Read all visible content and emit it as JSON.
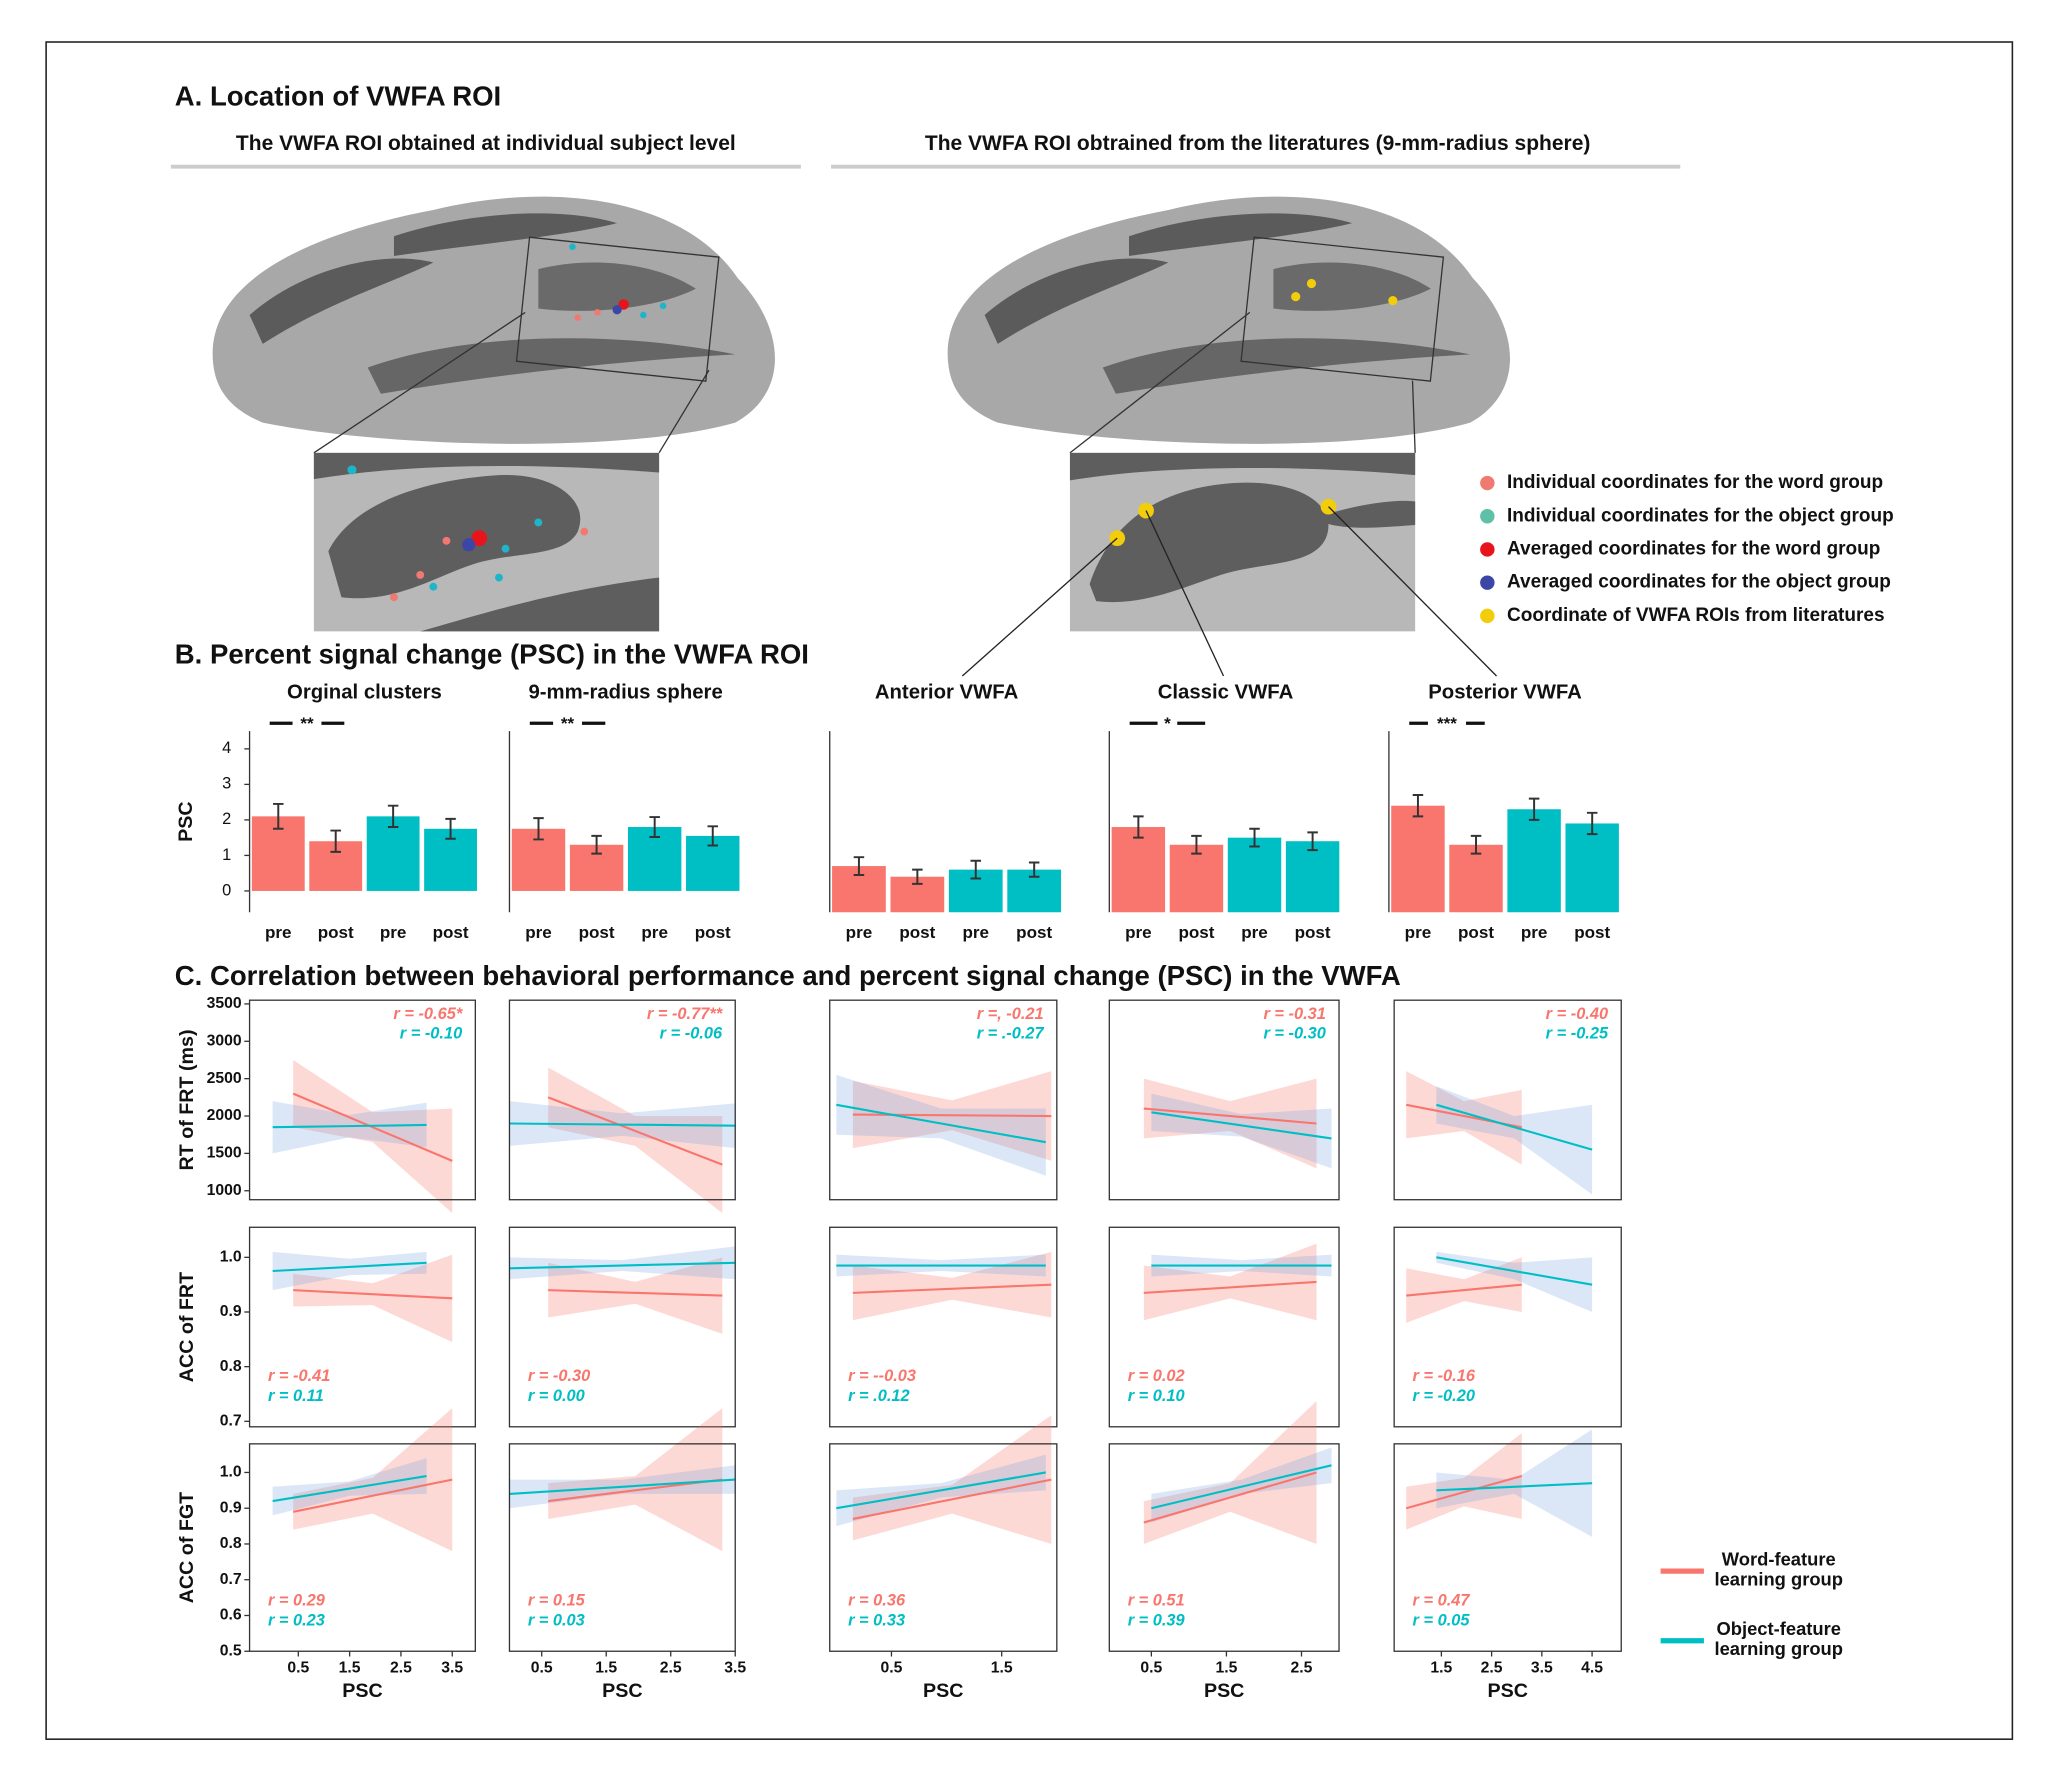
{
  "panel_a": {
    "title": "A. Location of VWFA ROI",
    "subtitles": [
      "The VWFA ROI obtained at individual subject level",
      "The VWFA ROI obtrained from the literatures (9-mm-radius sphere)"
    ],
    "legend": [
      {
        "label": "Individual coordinates for the word group",
        "color": "#f07a72"
      },
      {
        "label": "Individual coordinates for the object group",
        "color": "#5fc0a8"
      },
      {
        "label": "Averaged coordinates for the word group",
        "color": "#e8141b"
      },
      {
        "label": "Averaged coordinates for the object group",
        "color": "#3b46a6"
      },
      {
        "label": "Coordinate of VWFA ROIs from literatures",
        "color": "#f2cd0c"
      }
    ]
  },
  "panel_b_title": "B. Percent signal change (PSC) in the VWFA ROI",
  "panel_c_title": "C. Correlation between behavioral performance and percent signal change (PSC) in the VWFA",
  "legend": [
    {
      "name": "Word-feature learning group",
      "color": "#f8766d"
    },
    {
      "name": "Object-feature learning group",
      "color": "#00bfc4"
    }
  ],
  "chart_data": [
    {
      "type": "bar",
      "title": "Orginal clusters",
      "ylabel": "PSC",
      "categories": [
        "pre",
        "post",
        "pre",
        "post"
      ],
      "values": [
        2.1,
        1.4,
        2.1,
        1.75
      ],
      "errors": [
        0.35,
        0.3,
        0.3,
        0.28
      ],
      "colors": [
        "#f8766d",
        "#f8766d",
        "#00bfc4",
        "#00bfc4"
      ],
      "ylim": [
        -0.6,
        4.5
      ],
      "yticks": [
        0,
        1,
        2,
        3,
        4
      ],
      "annotation": "**"
    },
    {
      "type": "bar",
      "title": "9-mm-radius sphere",
      "categories": [
        "pre",
        "post",
        "pre",
        "post"
      ],
      "values": [
        1.75,
        1.3,
        1.8,
        1.55
      ],
      "errors": [
        0.3,
        0.25,
        0.28,
        0.27
      ],
      "colors": [
        "#f8766d",
        "#f8766d",
        "#00bfc4",
        "#00bfc4"
      ],
      "ylim": [
        -0.6,
        4.5
      ],
      "annotation": "**"
    },
    {
      "type": "bar",
      "title": "Anterior VWFA",
      "categories": [
        "pre",
        "post",
        "pre",
        "post"
      ],
      "values": [
        1.3,
        1.0,
        1.2,
        1.2
      ],
      "errors": [
        0.25,
        0.2,
        0.25,
        0.2
      ],
      "colors": [
        "#f8766d",
        "#f8766d",
        "#00bfc4",
        "#00bfc4"
      ],
      "ylim": [
        0,
        5.1
      ]
    },
    {
      "type": "bar",
      "title": "Classic VWFA",
      "categories": [
        "pre",
        "post",
        "pre",
        "post"
      ],
      "values": [
        2.4,
        1.9,
        2.1,
        2.0
      ],
      "errors": [
        0.3,
        0.25,
        0.25,
        0.25
      ],
      "colors": [
        "#f8766d",
        "#f8766d",
        "#00bfc4",
        "#00bfc4"
      ],
      "ylim": [
        0,
        5.1
      ],
      "annotation": "*"
    },
    {
      "type": "bar",
      "title": "Posterior VWFA",
      "categories": [
        "pre",
        "post",
        "pre",
        "post"
      ],
      "values": [
        3.0,
        1.9,
        2.9,
        2.5
      ],
      "errors": [
        0.3,
        0.25,
        0.3,
        0.3
      ],
      "colors": [
        "#f8766d",
        "#f8766d",
        "#00bfc4",
        "#00bfc4"
      ],
      "ylim": [
        0,
        5.1
      ],
      "annotation": "***"
    },
    {
      "type": "regression",
      "ylabel": "RT of FRT (ms)",
      "ylim": [
        880,
        3550
      ],
      "yticks": [
        1000,
        1500,
        2000,
        2500,
        3000,
        3500
      ],
      "xlim": [
        -0.45,
        3.95
      ],
      "series": [
        {
          "color": "#f8766d",
          "x": [
            0.4,
            3.5
          ],
          "values": [
            2300,
            1400
          ],
          "ci": [
            450,
            200,
            700
          ],
          "r_label": "r = -0.65*"
        },
        {
          "color": "#00bfc4",
          "x": [
            0,
            3.0
          ],
          "values": [
            1850,
            1880
          ],
          "ci": [
            350,
            150,
            300
          ],
          "r_label": "r = -0.10"
        }
      ]
    },
    {
      "type": "regression",
      "ylim": [
        880,
        3550
      ],
      "xlim": [
        0,
        3.5
      ],
      "series": [
        {
          "color": "#f8766d",
          "x": [
            0.6,
            3.3
          ],
          "values": [
            2250,
            1350
          ],
          "ci": [
            400,
            200,
            650
          ],
          "r_label": "r = -0.77**"
        },
        {
          "color": "#00bfc4",
          "x": [
            0,
            3.5
          ],
          "values": [
            1900,
            1870
          ],
          "ci": [
            300,
            150,
            300
          ],
          "r_label": "r = -0.06"
        }
      ]
    },
    {
      "type": "regression",
      "ylim": [
        880,
        3550
      ],
      "xlim": [
        -0.06,
        2.0
      ],
      "series": [
        {
          "color": "#f8766d",
          "x": [
            0.15,
            1.95
          ],
          "values": [
            2020,
            2000
          ],
          "ci": [
            450,
            200,
            600
          ],
          "r_label": "r =, -0.21"
        },
        {
          "color": "#00bfc4",
          "x": [
            0,
            1.9
          ],
          "values": [
            2150,
            1650
          ],
          "ci": [
            400,
            200,
            450
          ],
          "r_label": "r = .-0.27"
        }
      ]
    },
    {
      "type": "regression",
      "ylim": [
        880,
        3550
      ],
      "xlim": [
        -0.06,
        3.0
      ],
      "series": [
        {
          "color": "#f8766d",
          "x": [
            0.4,
            2.7
          ],
          "values": [
            2100,
            1900
          ],
          "ci": [
            400,
            200,
            600
          ],
          "r_label": "r = -0.31"
        },
        {
          "color": "#00bfc4",
          "x": [
            0.5,
            2.9
          ],
          "values": [
            2050,
            1700
          ],
          "ci": [
            250,
            150,
            400
          ],
          "r_label": "r = -0.30"
        }
      ]
    },
    {
      "type": "regression",
      "ylim": [
        880,
        3550
      ],
      "xlim": [
        0.56,
        5.08
      ],
      "series": [
        {
          "color": "#f8766d",
          "x": [
            0.8,
            3.1
          ],
          "values": [
            2150,
            1850
          ],
          "ci": [
            450,
            200,
            500
          ],
          "r_label": "r = -0.40"
        },
        {
          "color": "#00bfc4",
          "x": [
            1.4,
            4.5
          ],
          "values": [
            2150,
            1550
          ],
          "ci": [
            250,
            150,
            600
          ],
          "r_label": "r = -0.25"
        }
      ]
    },
    {
      "type": "regression",
      "ylabel": "ACC of FRT",
      "ylim": [
        0.69,
        1.055
      ],
      "yticks": [
        0.7,
        0.8,
        0.9,
        {
          "value": 1,
          "label": "1.0"
        }
      ],
      "xlim": [
        -0.45,
        3.95
      ],
      "series": [
        {
          "color": "#f8766d",
          "x": [
            0.4,
            3.5
          ],
          "values": [
            0.94,
            0.925
          ],
          "ci": [
            0.03,
            0.02,
            0.08
          ],
          "r_label": "r = -0.41"
        },
        {
          "color": "#00bfc4",
          "x": [
            0,
            3.0
          ],
          "values": [
            0.975,
            0.99
          ],
          "ci": [
            0.035,
            0.015,
            0.02
          ],
          "r_label": "r = 0.11"
        }
      ]
    },
    {
      "type": "regression",
      "ylim": [
        0.69,
        1.055
      ],
      "xlim": [
        0,
        3.5
      ],
      "series": [
        {
          "color": "#f8766d",
          "x": [
            0.6,
            3.3
          ],
          "values": [
            0.94,
            0.93
          ],
          "ci": [
            0.05,
            0.02,
            0.07
          ],
          "r_label": "r = -0.30"
        },
        {
          "color": "#00bfc4",
          "x": [
            0,
            3.5
          ],
          "values": [
            0.98,
            0.99
          ],
          "ci": [
            0.02,
            0.01,
            0.03
          ],
          "r_label": "r = 0.00"
        }
      ]
    },
    {
      "type": "regression",
      "ylim": [
        0.69,
        1.055
      ],
      "xlim": [
        -0.06,
        2.0
      ],
      "series": [
        {
          "color": "#f8766d",
          "x": [
            0.15,
            1.95
          ],
          "values": [
            0.935,
            0.95
          ],
          "ci": [
            0.05,
            0.02,
            0.06
          ],
          "r_label": "r = --0.03"
        },
        {
          "color": "#00bfc4",
          "x": [
            0,
            1.9
          ],
          "values": [
            0.985,
            0.985
          ],
          "ci": [
            0.02,
            0.01,
            0.02
          ],
          "r_label": "r = .0.12"
        }
      ]
    },
    {
      "type": "regression",
      "ylim": [
        0.69,
        1.055
      ],
      "xlim": [
        -0.06,
        3.0
      ],
      "series": [
        {
          "color": "#f8766d",
          "x": [
            0.4,
            2.7
          ],
          "values": [
            0.935,
            0.955
          ],
          "ci": [
            0.05,
            0.02,
            0.07
          ],
          "r_label": "r = 0.02"
        },
        {
          "color": "#00bfc4",
          "x": [
            0.5,
            2.9
          ],
          "values": [
            0.985,
            0.985
          ],
          "ci": [
            0.02,
            0.01,
            0.02
          ],
          "r_label": "r = 0.10"
        }
      ]
    },
    {
      "type": "regression",
      "ylim": [
        0.69,
        1.055
      ],
      "xlim": [
        0.56,
        5.08
      ],
      "series": [
        {
          "color": "#f8766d",
          "x": [
            0.8,
            3.1
          ],
          "values": [
            0.93,
            0.95
          ],
          "ci": [
            0.05,
            0.02,
            0.05
          ],
          "r_label": "r = -0.16"
        },
        {
          "color": "#00bfc4",
          "x": [
            1.4,
            4.5
          ],
          "values": [
            1.0,
            0.95
          ],
          "ci": [
            0.01,
            0.015,
            0.05
          ],
          "r_label": "r = -0.20"
        }
      ]
    },
    {
      "type": "regression",
      "ylabel": "ACC of FGT",
      "xlabel": "PSC",
      "ylim": [
        0.5,
        1.08
      ],
      "yticks": [
        0.5,
        0.6,
        0.7,
        0.8,
        0.9,
        {
          "value": 1,
          "label": "1.0"
        }
      ],
      "xlim": [
        -0.45,
        3.95
      ],
      "xticks": [
        0.5,
        1.5,
        2.5,
        3.5
      ],
      "series": [
        {
          "color": "#f8766d",
          "x": [
            0.4,
            3.5
          ],
          "values": [
            0.89,
            0.98
          ],
          "ci": [
            0.05,
            0.05,
            0.2
          ],
          "r_label": "r = 0.29"
        },
        {
          "color": "#00bfc4",
          "x": [
            0,
            3.0
          ],
          "values": [
            0.92,
            0.99
          ],
          "ci": [
            0.04,
            0.02,
            0.05
          ],
          "r_label": "r = 0.23"
        }
      ]
    },
    {
      "type": "regression",
      "xlabel": "PSC",
      "ylim": [
        0.5,
        1.08
      ],
      "xlim": [
        0,
        3.5
      ],
      "xticks": [
        0.5,
        1.5,
        2.5,
        3.5
      ],
      "series": [
        {
          "color": "#f8766d",
          "x": [
            0.6,
            3.3
          ],
          "values": [
            0.92,
            0.98
          ],
          "ci": [
            0.05,
            0.04,
            0.2
          ],
          "r_label": "r = 0.15"
        },
        {
          "color": "#00bfc4",
          "x": [
            0,
            3.5
          ],
          "values": [
            0.94,
            0.98
          ],
          "ci": [
            0.04,
            0.02,
            0.04
          ],
          "r_label": "r = 0.03"
        }
      ]
    },
    {
      "type": "regression",
      "xlabel": "PSC",
      "ylim": [
        0.5,
        1.08
      ],
      "xlim": [
        -0.06,
        2.0
      ],
      "xticks": [
        0.5,
        1.5
      ],
      "series": [
        {
          "color": "#f8766d",
          "x": [
            0.15,
            1.95
          ],
          "values": [
            0.87,
            0.98
          ],
          "ci": [
            0.06,
            0.04,
            0.18
          ],
          "r_label": "r = 0.36"
        },
        {
          "color": "#00bfc4",
          "x": [
            0,
            1.9
          ],
          "values": [
            0.9,
            1.0
          ],
          "ci": [
            0.05,
            0.02,
            0.05
          ],
          "r_label": "r = 0.33"
        }
      ]
    },
    {
      "type": "regression",
      "xlabel": "PSC",
      "ylim": [
        0.5,
        1.08
      ],
      "xlim": [
        -0.06,
        3.0
      ],
      "xticks": [
        0.5,
        1.5,
        2.5
      ],
      "series": [
        {
          "color": "#f8766d",
          "x": [
            0.4,
            2.7
          ],
          "values": [
            0.86,
            1.0
          ],
          "ci": [
            0.06,
            0.04,
            0.2
          ],
          "r_label": "r = 0.51"
        },
        {
          "color": "#00bfc4",
          "x": [
            0.5,
            2.9
          ],
          "values": [
            0.9,
            1.02
          ],
          "ci": [
            0.04,
            0.02,
            0.05
          ],
          "r_label": "r = 0.39"
        }
      ]
    },
    {
      "type": "regression",
      "xlabel": "PSC",
      "ylim": [
        0.5,
        1.08
      ],
      "xlim": [
        0.56,
        5.08
      ],
      "xticks": [
        1.5,
        2.5,
        3.5,
        4.5
      ],
      "series": [
        {
          "color": "#f8766d",
          "x": [
            0.8,
            3.1
          ],
          "values": [
            0.9,
            0.99
          ],
          "ci": [
            0.06,
            0.04,
            0.12
          ],
          "r_label": "r = 0.47"
        },
        {
          "color": "#00bfc4",
          "x": [
            1.4,
            4.5
          ],
          "values": [
            0.95,
            0.97
          ],
          "ci": [
            0.05,
            0.02,
            0.15
          ],
          "r_label": "r = 0.05"
        }
      ]
    }
  ]
}
